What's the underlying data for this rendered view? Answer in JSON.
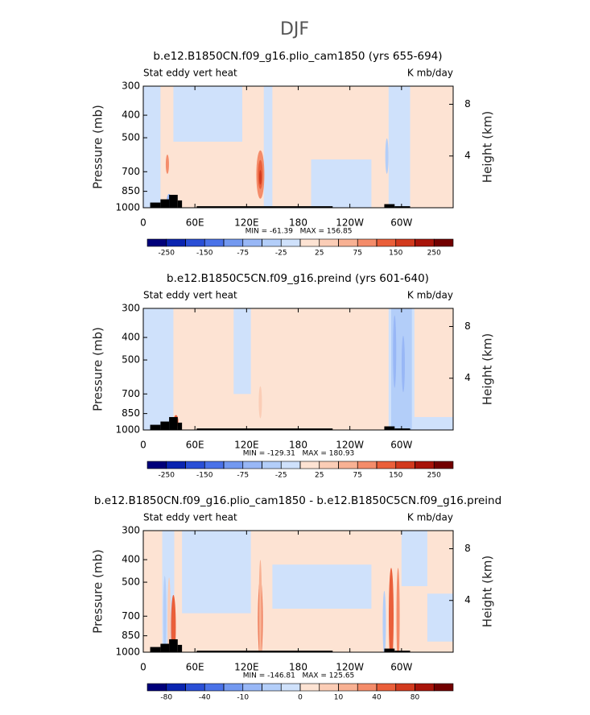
{
  "title": "DJF",
  "chart_data": [
    {
      "type": "contour",
      "title": "b.e12.B1850CN.f09_g16.plio_cam1850 (yrs 655-694)",
      "left_label": "Stat eddy vert heat",
      "right_label": "K mb/day",
      "stats": "MIN = -61.39   MAX = 156.85",
      "ylabel": "Pressure (mb)",
      "y2label": "Height (km)",
      "xlim": [
        0,
        360
      ],
      "xticks": [
        0,
        {
          "value": 60,
          "label": "60E"
        },
        {
          "value": 120,
          "label": "120E"
        },
        180,
        {
          "value": 240,
          "label": "120W"
        },
        {
          "value": 300,
          "label": "60W"
        }
      ],
      "ylim": [
        1000,
        300
      ],
      "ylog": true,
      "yticks": [
        300,
        400,
        500,
        700,
        850,
        1000
      ],
      "y2lim": [
        0,
        9.4
      ],
      "y2ticks": [
        4,
        8
      ],
      "colorbar": {
        "levels": [
          -250,
          -200,
          -150,
          -100,
          -75,
          -50,
          -25,
          0,
          25,
          50,
          75,
          100,
          150,
          200,
          250
        ],
        "labels": [
          -250,
          -150,
          -75,
          -25,
          25,
          75,
          150,
          250
        ],
        "colors": [
          "#00007a",
          "#0a24b0",
          "#2a4fd6",
          "#4a72e8",
          "#7399f0",
          "#98b7f6",
          "#b3cef9",
          "#cfe1fb",
          "#fde3d3",
          "#fbcdb6",
          "#f8b193",
          "#f48c6a",
          "#ea5f3a",
          "#d23a1e",
          "#a8140a",
          "#720000"
        ]
      }
    },
    {
      "type": "contour",
      "title": "b.e12.B1850C5CN.f09_g16.preind (yrs 601-640)",
      "left_label": "Stat eddy vert heat",
      "right_label": "K mb/day",
      "stats": "MIN = -129.31   MAX = 180.93",
      "ylabel": "Pressure (mb)",
      "y2label": "Height (km)",
      "xlim": [
        0,
        360
      ],
      "xticks": [
        0,
        {
          "value": 60,
          "label": "60E"
        },
        {
          "value": 120,
          "label": "120E"
        },
        180,
        {
          "value": 240,
          "label": "120W"
        },
        {
          "value": 300,
          "label": "60W"
        }
      ],
      "ylim": [
        1000,
        300
      ],
      "ylog": true,
      "yticks": [
        300,
        400,
        500,
        700,
        850,
        1000
      ],
      "y2lim": [
        0,
        9.4
      ],
      "y2ticks": [
        4,
        8
      ],
      "colorbar": {
        "levels": [
          -250,
          -200,
          -150,
          -100,
          -75,
          -50,
          -25,
          0,
          25,
          50,
          75,
          100,
          150,
          200,
          250
        ],
        "labels": [
          -250,
          -150,
          -75,
          -25,
          25,
          75,
          150,
          250
        ],
        "colors": [
          "#00007a",
          "#0a24b0",
          "#2a4fd6",
          "#4a72e8",
          "#7399f0",
          "#98b7f6",
          "#b3cef9",
          "#cfe1fb",
          "#fde3d3",
          "#fbcdb6",
          "#f8b193",
          "#f48c6a",
          "#ea5f3a",
          "#d23a1e",
          "#a8140a",
          "#720000"
        ]
      }
    },
    {
      "type": "contour",
      "title": "b.e12.B1850CN.f09_g16.plio_cam1850 - b.e12.B1850C5CN.f09_g16.preind",
      "left_label": "Stat eddy vert heat",
      "right_label": "K mb/day",
      "stats": "MIN = -146.81   MAX = 125.65",
      "ylabel": "Pressure (mb)",
      "y2label": "Height (km)",
      "xlim": [
        0,
        360
      ],
      "xticks": [
        0,
        {
          "value": 60,
          "label": "60E"
        },
        {
          "value": 120,
          "label": "120E"
        },
        180,
        {
          "value": 240,
          "label": "120W"
        },
        {
          "value": 300,
          "label": "60W"
        }
      ],
      "ylim": [
        1000,
        300
      ],
      "ylog": true,
      "yticks": [
        300,
        400,
        500,
        700,
        850,
        1000
      ],
      "y2lim": [
        0,
        9.4
      ],
      "y2ticks": [
        4,
        8
      ],
      "colorbar": {
        "levels": [
          -80,
          -60,
          -40,
          -20,
          -10,
          -5,
          -2,
          0,
          5,
          10,
          20,
          40,
          60,
          80,
          100
        ],
        "labels": [
          -80,
          -40,
          -10,
          0,
          10,
          40,
          80
        ],
        "colors": [
          "#00007a",
          "#0a24b0",
          "#2a4fd6",
          "#4a72e8",
          "#7399f0",
          "#98b7f6",
          "#b3cef9",
          "#cfe1fb",
          "#fde3d3",
          "#fbcdb6",
          "#f8b193",
          "#f48c6a",
          "#ea5f3a",
          "#d23a1e",
          "#a8140a",
          "#720000"
        ]
      }
    }
  ]
}
